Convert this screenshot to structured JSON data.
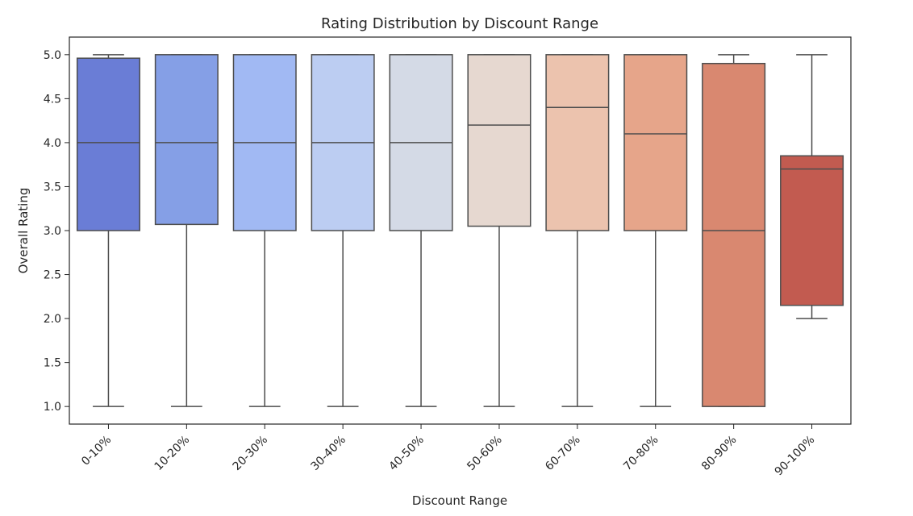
{
  "chart_data": {
    "type": "box",
    "title": "Rating Distribution by Discount Range",
    "xlabel": "Discount Range",
    "ylabel": "Overall Rating",
    "ylim": [
      0.8,
      5.2
    ],
    "yticks": [
      1.0,
      1.5,
      2.0,
      2.5,
      3.0,
      3.5,
      4.0,
      4.5,
      5.0
    ],
    "ytick_labels": [
      "1.0",
      "1.5",
      "2.0",
      "2.5",
      "3.0",
      "3.5",
      "4.0",
      "4.5",
      "5.0"
    ],
    "grid": false,
    "categories": [
      "0-10%",
      "10-20%",
      "20-30%",
      "30-40%",
      "40-50%",
      "50-60%",
      "60-70%",
      "70-80%",
      "80-90%",
      "90-100%"
    ],
    "boxes": [
      {
        "min": 1.0,
        "q1": 3.0,
        "median": 4.0,
        "q3": 4.96,
        "max": 5.0,
        "color": "#6a7dd6"
      },
      {
        "min": 1.0,
        "q1": 3.07,
        "median": 4.0,
        "q3": 5.0,
        "max": 5.0,
        "color": "#859fe6"
      },
      {
        "min": 1.0,
        "q1": 3.0,
        "median": 4.0,
        "q3": 5.0,
        "max": 5.0,
        "color": "#a1b9f3"
      },
      {
        "min": 1.0,
        "q1": 3.0,
        "median": 4.0,
        "q3": 5.0,
        "max": 5.0,
        "color": "#bccdf2"
      },
      {
        "min": 1.0,
        "q1": 3.0,
        "median": 4.0,
        "q3": 5.0,
        "max": 5.0,
        "color": "#d4dae6"
      },
      {
        "min": 1.0,
        "q1": 3.05,
        "median": 4.2,
        "q3": 5.0,
        "max": 5.0,
        "color": "#e6d8d0"
      },
      {
        "min": 1.0,
        "q1": 3.0,
        "median": 4.4,
        "q3": 5.0,
        "max": 5.0,
        "color": "#ecc3ae"
      },
      {
        "min": 1.0,
        "q1": 3.0,
        "median": 4.1,
        "q3": 5.0,
        "max": 5.0,
        "color": "#e6a58a"
      },
      {
        "min": 1.0,
        "q1": 1.0,
        "median": 3.0,
        "q3": 4.9,
        "max": 5.0,
        "color": "#d98870"
      },
      {
        "min": 2.0,
        "q1": 2.15,
        "median": 3.7,
        "q3": 3.85,
        "max": 5.0,
        "color": "#c25b50"
      }
    ]
  }
}
